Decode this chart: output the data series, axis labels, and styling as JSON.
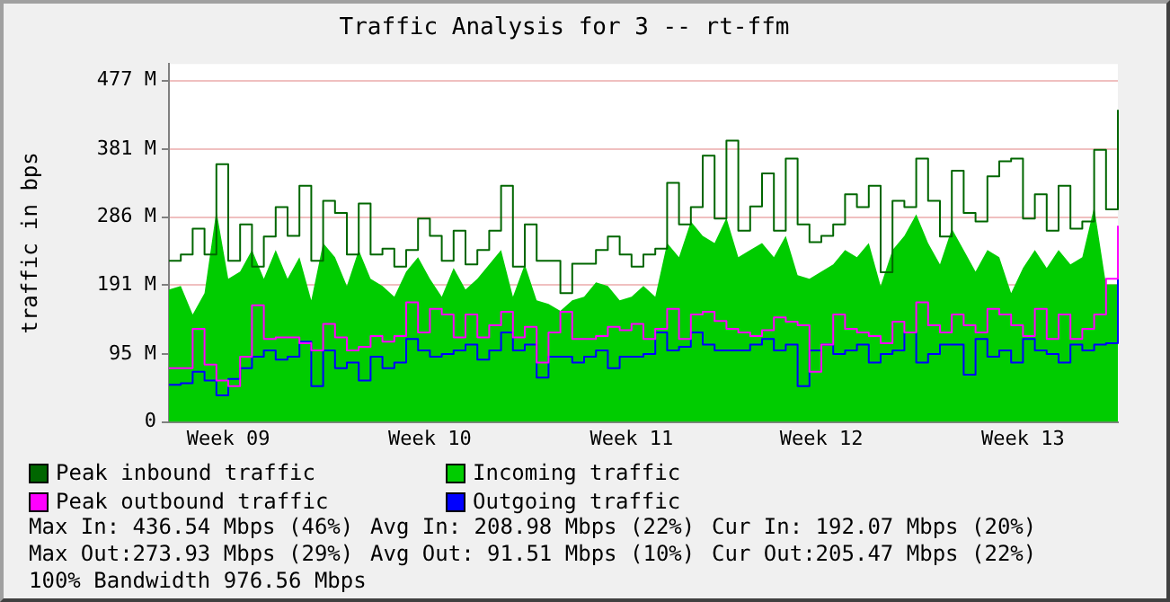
{
  "chart_data": {
    "type": "line",
    "title": "Traffic Analysis for 3 -- rt-ffm",
    "ylabel": "traffic in bps",
    "categories": [
      null,
      null,
      null,
      null,
      null,
      "Week 09",
      null,
      null,
      null,
      null,
      null,
      null,
      null,
      null,
      null,
      null,
      null,
      null,
      null,
      null,
      null,
      null,
      "Week 10",
      null,
      null,
      null,
      null,
      null,
      null,
      null,
      null,
      null,
      null,
      null,
      null,
      null,
      null,
      null,
      null,
      "Week 11",
      null,
      null,
      null,
      null,
      null,
      null,
      null,
      null,
      null,
      null,
      null,
      null,
      null,
      null,
      null,
      "Week 12",
      null,
      null,
      null,
      null,
      null,
      null,
      null,
      null,
      null,
      null,
      null,
      null,
      null,
      null,
      null,
      null,
      "Week 13",
      null,
      null,
      null,
      null,
      null,
      null,
      null,
      null
    ],
    "series": [
      {
        "name": "Peak inbound traffic",
        "type": "step",
        "color": "#006600",
        "values": [
          225,
          234,
          270,
          234,
          360,
          225,
          276,
          217,
          259,
          300,
          260,
          330,
          225,
          309,
          292,
          234,
          305,
          234,
          242,
          217,
          240,
          284,
          260,
          225,
          267,
          220,
          240,
          267,
          330,
          217,
          276,
          225,
          225,
          180,
          221,
          221,
          240,
          259,
          234,
          217,
          234,
          242,
          334,
          276,
          300,
          372,
          284,
          393,
          267,
          301,
          347,
          267,
          368,
          276,
          251,
          260,
          276,
          318,
          300,
          330,
          209,
          309,
          300,
          368,
          309,
          259,
          351,
          292,
          280,
          343,
          364,
          368,
          284,
          318,
          267,
          330,
          270,
          280,
          380,
          297,
          436
        ]
      },
      {
        "name": "Incoming traffic",
        "type": "area",
        "color": "#00cc00",
        "values": [
          185,
          190,
          150,
          180,
          295,
          200,
          210,
          240,
          200,
          240,
          200,
          230,
          170,
          250,
          230,
          190,
          240,
          200,
          190,
          175,
          210,
          230,
          200,
          175,
          215,
          185,
          200,
          220,
          240,
          175,
          220,
          170,
          165,
          155,
          170,
          175,
          195,
          190,
          170,
          175,
          190,
          175,
          250,
          230,
          280,
          260,
          250,
          285,
          230,
          240,
          250,
          230,
          260,
          205,
          200,
          210,
          220,
          240,
          230,
          250,
          190,
          240,
          260,
          290,
          250,
          220,
          270,
          240,
          210,
          240,
          230,
          180,
          215,
          240,
          215,
          240,
          220,
          230,
          300,
          192,
          192
        ]
      },
      {
        "name": "Peak outbound traffic",
        "type": "step",
        "color": "#ff00ff",
        "values": [
          75,
          75,
          130,
          80,
          58,
          50,
          91,
          163,
          116,
          118,
          118,
          110,
          100,
          137,
          118,
          100,
          105,
          120,
          112,
          120,
          167,
          125,
          158,
          150,
          118,
          150,
          118,
          135,
          154,
          118,
          133,
          83,
          125,
          154,
          116,
          116,
          120,
          133,
          128,
          137,
          116,
          130,
          158,
          116,
          150,
          154,
          141,
          130,
          125,
          120,
          128,
          146,
          140,
          135,
          70,
          108,
          150,
          130,
          125,
          120,
          110,
          140,
          125,
          167,
          135,
          125,
          150,
          135,
          125,
          158,
          150,
          135,
          120,
          158,
          116,
          150,
          116,
          130,
          150,
          200,
          274
        ]
      },
      {
        "name": "Outgoing traffic",
        "type": "step",
        "color": "#0000ff",
        "values": [
          52,
          54,
          70,
          58,
          37,
          60,
          75,
          91,
          100,
          87,
          91,
          112,
          50,
          100,
          75,
          83,
          58,
          91,
          75,
          83,
          116,
          100,
          91,
          95,
          100,
          108,
          87,
          100,
          125,
          100,
          108,
          62,
          91,
          91,
          83,
          91,
          100,
          75,
          91,
          91,
          95,
          125,
          100,
          105,
          125,
          108,
          100,
          100,
          100,
          108,
          116,
          100,
          108,
          50,
          100,
          108,
          95,
          100,
          108,
          83,
          95,
          100,
          125,
          83,
          95,
          108,
          108,
          66,
          116,
          91,
          100,
          83,
          116,
          100,
          95,
          83,
          108,
          100,
          108,
          110,
          205
        ]
      }
    ],
    "ylim": [
      0,
      500
    ],
    "yticks": [
      0,
      {
        "value": 95,
        "label": "95 M"
      },
      {
        "value": 191,
        "label": "191 M"
      },
      {
        "value": 286,
        "label": "286 M"
      },
      {
        "value": 381,
        "label": "381 M"
      },
      {
        "value": 477,
        "label": "477 M"
      }
    ],
    "grid": "y",
    "legend": "bottom",
    "marker": "none",
    "annotations": [
      "Max In: 436.54 Mbps (46%)",
      "Avg In: 208.98 Mbps (22%)",
      "Cur In: 192.07 Mbps (20%)",
      "Max Out:273.93 Mbps (29%)",
      "Avg Out: 91.51 Mbps (10%)",
      "Cur Out:205.47 Mbps (22%)",
      "100% Bandwidth 976.56 Mbps"
    ]
  }
}
